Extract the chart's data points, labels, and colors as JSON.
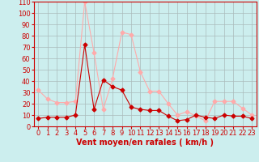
{
  "x": [
    0,
    1,
    2,
    3,
    4,
    5,
    6,
    7,
    8,
    9,
    10,
    11,
    12,
    13,
    14,
    15,
    16,
    17,
    18,
    19,
    20,
    21,
    22,
    23
  ],
  "wind_mean": [
    7,
    8,
    8,
    8,
    10,
    72,
    15,
    41,
    35,
    32,
    17,
    15,
    14,
    14,
    9,
    5,
    6,
    10,
    8,
    7,
    10,
    9,
    9,
    7
  ],
  "wind_gust": [
    32,
    24,
    21,
    21,
    22,
    110,
    65,
    15,
    42,
    83,
    81,
    48,
    31,
    31,
    20,
    10,
    13,
    9,
    5,
    22,
    22,
    22,
    16,
    10
  ],
  "ylim": [
    0,
    110
  ],
  "yticks": [
    0,
    10,
    20,
    30,
    40,
    50,
    60,
    70,
    80,
    90,
    100,
    110
  ],
  "xlabel": "Vent moyen/en rafales ( km/h )",
  "bg_color": "#cceeee",
  "grid_color": "#aabbbb",
  "line_mean_color": "#cc0000",
  "line_gust_color": "#ffaaaa",
  "marker_size": 2.5,
  "line_width": 0.8,
  "xlabel_fontsize": 7,
  "tick_fontsize": 6,
  "xlabel_color": "#cc0000",
  "tick_color": "#cc0000"
}
